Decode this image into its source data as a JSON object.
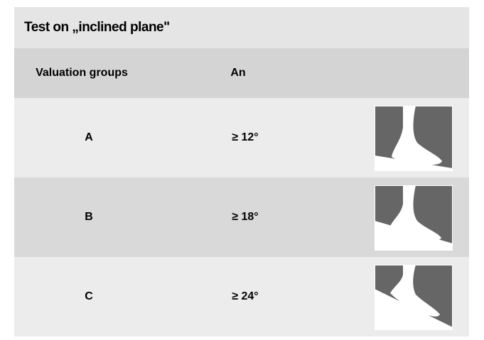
{
  "header": {
    "title": "Test on „inclined plane\""
  },
  "table": {
    "columns": [
      "Valuation groups",
      "An"
    ],
    "rows": [
      [
        "A",
        "≥ 12°"
      ],
      [
        "B",
        "≥ 18°"
      ],
      [
        "C",
        "≥ 24°"
      ]
    ]
  }
}
